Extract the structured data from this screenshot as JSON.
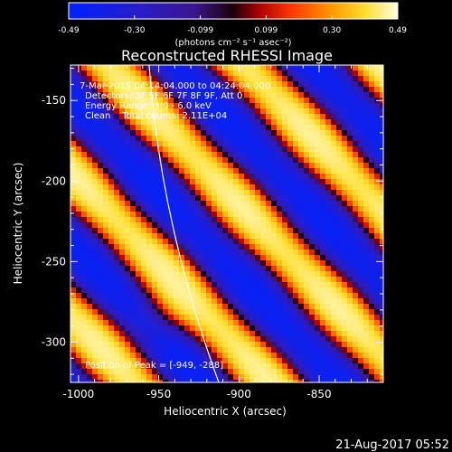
{
  "chart_data": {
    "type": "heatmap",
    "title": "Reconstructed RHESSI Image",
    "xlabel": "Heliocentric X (arcsec)",
    "ylabel": "Heliocentric Y (arcsec)",
    "xlim": [
      -1005,
      -810
    ],
    "ylim": [
      -325,
      -128
    ],
    "xticks": [
      -1000,
      -950,
      -900,
      -850
    ],
    "yticks": [
      -150,
      -200,
      -250,
      -300
    ],
    "colorbar": {
      "label": "(photons cm⁻² s⁻¹ asec⁻²)",
      "range": [
        -0.49,
        0.49
      ],
      "ticks": [
        "-0.49",
        "-0.30",
        "-0.099",
        "0.099",
        "0.30",
        "0.49"
      ]
    },
    "annotations": [
      " 7-Mar-2015 04:14:04.000 to 04:24:04.000",
      "Detectors: 3F 5F 6F 7F 8F 9F, Att 0",
      "Energy Range: 3.0 - 6.0 keV",
      "Clean    Total counts: 2.11E+04",
      "Position of Peak = [-949, -288]"
    ],
    "peak": {
      "x": -949,
      "y": -288
    },
    "footer_date": "21-Aug-2017 05:52"
  }
}
